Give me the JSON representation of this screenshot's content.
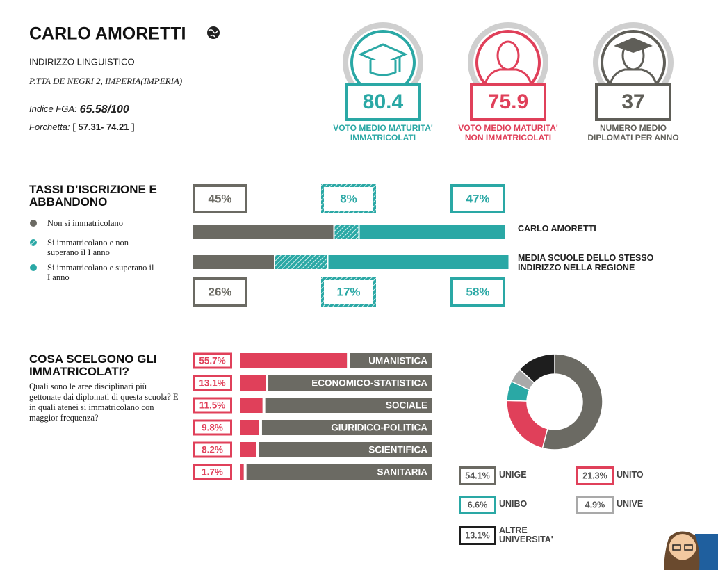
{
  "header": {
    "title": "CARLO AMORETTI",
    "school_type": "INDIRIZZO LINGUISTICO",
    "address": "P.TTA DE NEGRI 2, IMPERIA(IMPERIA)",
    "fga_label": "Indice FGA:",
    "fga_value": "65.58/100",
    "range_label": "Forchetta:",
    "range_value": "[ 57.31- 74.21 ]"
  },
  "stats": [
    {
      "value": 80.4,
      "label": [
        "VOTO MEDIO MATURITA'",
        "IMMATRICOLATI"
      ],
      "color": "#2aa8a5"
    },
    {
      "value": 75.9,
      "label": [
        "VOTO MEDIO MATURITA'",
        "NON IMMATRICOLATI"
      ],
      "color": "#e0405a"
    },
    {
      "value": 37,
      "label": [
        "NUMERO MEDIO",
        "DIPLOMATI PER ANNO"
      ],
      "color": "#5f5e58"
    }
  ],
  "chart_data": [
    {
      "type": "bar",
      "stacked": true,
      "title": "TASSI D’ISCRIZIONE E ABBANDONO",
      "categories": [
        "CARLO AMORETTI",
        "MEDIA SCUOLE DELLO STESSO INDIRIZZO NELLA REGIONE"
      ],
      "xlim": [
        0,
        100
      ],
      "series": [
        {
          "name": "Non si immatricolano",
          "color": "#6b6a63",
          "values": [
            45,
            26
          ],
          "value_labels": [
            "45%",
            "26%"
          ]
        },
        {
          "name": "Si immatricolano e non superano il I anno",
          "color": "#2aa8a5",
          "hatched": true,
          "values": [
            8,
            17
          ],
          "value_labels": [
            "8%",
            "17%"
          ]
        },
        {
          "name": "Si immatricolano e superano il I anno",
          "color": "#2aa8a5",
          "values": [
            47,
            58
          ],
          "value_labels": [
            "47%",
            "58%"
          ]
        }
      ]
    },
    {
      "type": "bar",
      "stacked": false,
      "title": "COSA SCELGONO GLI IMMATRICOLATI?",
      "subtitle": "Quali sono le aree disciplinari più gettonate dai diplomati di questa scuola? E in quali atenei si immatricolano con maggior frequenza?",
      "categories": [
        "UMANISTICA",
        "ECONOMICO-STATISTICA",
        "SOCIALE",
        "GIURIDICO-POLITICA",
        "SCIENTIFICA",
        "SANITARIA"
      ],
      "values": [
        55.7,
        13.1,
        11.5,
        9.8,
        8.2,
        1.7
      ],
      "value_labels": [
        "55.7%",
        "13.1%",
        "11.5%",
        "9.8%",
        "8.2%",
        "1.7%"
      ],
      "xlim": [
        0,
        100
      ],
      "color": "#e0405a",
      "track_color": "#6b6a63"
    },
    {
      "type": "pie",
      "donut": true,
      "categories": [
        "UNIGE",
        "UNITO",
        "UNIBO",
        "UNIVE",
        "ALTRE UNIVERSITA'"
      ],
      "values": [
        54.1,
        21.3,
        6.6,
        4.9,
        13.1
      ],
      "value_labels": [
        "54.1%",
        "21.3%",
        "6.6%",
        "4.9%",
        "13.1%"
      ],
      "colors": [
        "#6b6a63",
        "#e0405a",
        "#2aa8a5",
        "#a9a9a9",
        "#1e1e1e"
      ]
    }
  ]
}
